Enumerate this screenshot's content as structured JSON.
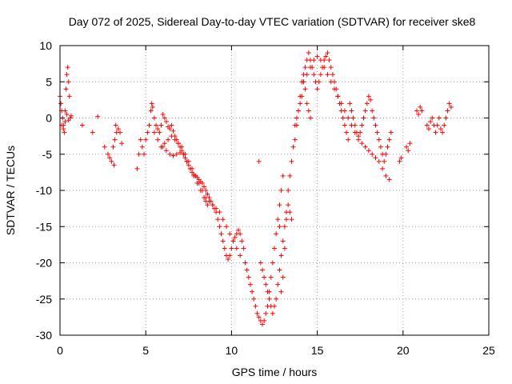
{
  "chart_data": {
    "type": "scatter",
    "title": "Day 072 of 2025, Sidereal Day-to-day VTEC variation (SDTVAR) for receiver ske8",
    "xlabel": "GPS time / hours",
    "ylabel": "SDTVAR / TECUs",
    "xlim": [
      0,
      25
    ],
    "ylim": [
      -30,
      10
    ],
    "xticks": [
      0,
      5,
      10,
      15,
      20,
      25
    ],
    "yticks": [
      -30,
      -25,
      -20,
      -15,
      -10,
      -5,
      0,
      5,
      10
    ],
    "xtick_labels": [
      "0",
      "5",
      "10",
      "15",
      "20",
      "25"
    ],
    "ytick_labels": [
      "-30",
      "-25",
      "-20",
      "-15",
      "-10",
      "-5",
      "0",
      "5",
      "10"
    ],
    "grid": true,
    "marker": "+",
    "marker_color": "#ff0000",
    "series": [
      {
        "name": "SDTVAR",
        "x": [
          0.0,
          0.05,
          0.1,
          0.15,
          0.2,
          0.25,
          0.3,
          0.35,
          0.4,
          0.45,
          0.5,
          0.55,
          0.1,
          0.2,
          0.3,
          0.4,
          0.5,
          0.6,
          0.65,
          1.3,
          1.9,
          2.2,
          2.6,
          2.8,
          3.0,
          3.1,
          3.2,
          3.3,
          3.4,
          3.5,
          3.6,
          2.9,
          3.15,
          3.25,
          4.5,
          4.6,
          4.7,
          4.8,
          4.9,
          5.0,
          5.1,
          5.2,
          5.3,
          5.35,
          5.4,
          5.5,
          5.6,
          5.7,
          5.8,
          5.9,
          6.0,
          6.1,
          6.2,
          6.3,
          6.4,
          6.5,
          6.6,
          6.7,
          6.8,
          6.9,
          7.0,
          7.1,
          7.2,
          7.3,
          7.4,
          7.5,
          7.6,
          7.7,
          7.8,
          7.9,
          8.0,
          8.1,
          8.2,
          8.3,
          8.4,
          8.5,
          8.6,
          8.7,
          8.8,
          8.9,
          9.0,
          9.1,
          9.2,
          9.3,
          9.4,
          9.5,
          9.6,
          9.7,
          9.8,
          9.9,
          10.0,
          10.1,
          10.2,
          10.3,
          10.4,
          10.5,
          10.6,
          10.7,
          6.0,
          6.2,
          6.4,
          6.6,
          6.8,
          7.0,
          7.2,
          7.4,
          7.6,
          7.8,
          8.0,
          8.2,
          8.4,
          8.5,
          8.6,
          5.5,
          5.7,
          5.9,
          6.1,
          6.3,
          6.5,
          6.7,
          6.9,
          7.1,
          7.3,
          7.5,
          7.7,
          7.9,
          8.1,
          8.3,
          8.5,
          8.7,
          8.9,
          9.1,
          9.3,
          9.5,
          9.7,
          9.9,
          10.1,
          10.3,
          10.5,
          10.8,
          10.9,
          11.0,
          11.1,
          11.2,
          11.3,
          11.4,
          11.5,
          11.6,
          11.7,
          11.8,
          11.9,
          12.0,
          12.1,
          12.2,
          12.3,
          12.4,
          12.5,
          12.6,
          12.7,
          12.8,
          12.9,
          13.0,
          11.6,
          11.7,
          11.8,
          11.9,
          12.0,
          12.1,
          12.2,
          12.3,
          12.4,
          12.5,
          12.6,
          12.7,
          12.8,
          12.9,
          13.0,
          13.1,
          13.2,
          13.3,
          13.4,
          13.5,
          12.8,
          12.9,
          13.0,
          13.1,
          13.2,
          13.3,
          13.4,
          13.5,
          13.6,
          13.7,
          13.8,
          13.9,
          14.0,
          14.1,
          14.2,
          14.3,
          14.4,
          14.5,
          14.6,
          13.7,
          13.8,
          13.9,
          14.0,
          14.1,
          14.2,
          14.3,
          14.4,
          14.5,
          14.6,
          14.7,
          14.8,
          14.9,
          15.0,
          15.1,
          15.2,
          15.3,
          15.4,
          15.5,
          15.6,
          15.7,
          15.8,
          15.9,
          16.0,
          16.1,
          16.2,
          16.3,
          16.4,
          16.5,
          16.6,
          16.7,
          16.8,
          14.2,
          14.4,
          14.6,
          14.8,
          15.0,
          15.2,
          15.4,
          15.6,
          15.8,
          16.0,
          16.2,
          16.4,
          16.6,
          16.8,
          17.0,
          17.2,
          17.4,
          17.6,
          17.8,
          18.0,
          18.2,
          18.4,
          18.6,
          18.8,
          19.0,
          19.2,
          16.9,
          17.0,
          17.1,
          17.2,
          17.3,
          17.4,
          17.5,
          17.6,
          17.7,
          17.8,
          17.9,
          18.0,
          18.1,
          18.2,
          18.3,
          18.4,
          18.5,
          18.6,
          18.7,
          18.8,
          18.9,
          19.0,
          19.1,
          19.2,
          19.3,
          19.8,
          19.9,
          20.2,
          20.3,
          20.4,
          20.8,
          20.9,
          21.0,
          21.1,
          21.4,
          21.5,
          21.6,
          21.7,
          21.8,
          21.9,
          22.0,
          22.1,
          22.2,
          22.3,
          22.4,
          22.5,
          22.6,
          22.7,
          22.8
        ],
        "y": [
          3,
          2,
          1,
          0,
          -1,
          -2,
          1,
          4,
          6,
          7,
          5,
          3,
          -1,
          -1.5,
          -0.5,
          0.5,
          -0.3,
          0,
          0.3,
          -1,
          -2,
          0.2,
          -4,
          -5,
          -6,
          -4,
          -3,
          -2,
          -1.5,
          -2,
          -3.5,
          -5.5,
          -6.5,
          -1,
          -7,
          -5,
          -3,
          -4,
          -5,
          -3,
          -2,
          -1,
          1,
          2,
          1.5,
          0,
          -1,
          -1.5,
          -2,
          -1,
          0.5,
          0,
          -0.5,
          -1.2,
          -1.5,
          -1,
          -1.8,
          -2.5,
          -3,
          -3.5,
          -4,
          -4.5,
          -5,
          -5.5,
          -6,
          -6.5,
          -7,
          -7.5,
          -7.8,
          -8,
          -8.2,
          -8.5,
          -8.8,
          -9,
          -9.5,
          -10,
          -10.5,
          -11,
          -11.5,
          -12,
          -12.5,
          -13,
          -14,
          -15,
          -16,
          -17,
          -18,
          -19,
          -19.5,
          -19,
          -18,
          -17,
          -16.5,
          -16,
          -15.5,
          -16,
          -17,
          -18,
          -4,
          -4.5,
          -5,
          -5.2,
          -5,
          -4.8,
          -5,
          -6,
          -7,
          -8,
          -9,
          -10,
          -11,
          -11.5,
          -12,
          -2,
          -3,
          -4,
          -3.5,
          -3,
          -2.5,
          -3,
          -3.5,
          -4,
          -5,
          -6,
          -7,
          -8,
          -9,
          -10,
          -11,
          -11.5,
          -12,
          -12.5,
          -13,
          -14,
          -15,
          -16,
          -17,
          -18,
          -19,
          -20,
          -21,
          -22,
          -23,
          -24,
          -25,
          -26,
          -27,
          -27.5,
          -28,
          -28.5,
          -28,
          -27,
          -26,
          -24,
          -22,
          -20,
          -18,
          -16,
          -14,
          -12,
          -10,
          -8,
          -6,
          -20,
          -21,
          -22,
          -23,
          -24,
          -25,
          -26,
          -27,
          -26,
          -25,
          -23,
          -21,
          -19,
          -17,
          -15,
          -13,
          -12,
          -13,
          -14,
          -15,
          -24,
          -22,
          -18,
          -14,
          -10,
          -8,
          -6,
          -4,
          -3,
          -1,
          1,
          3,
          5,
          6,
          4,
          2,
          1,
          0,
          -1,
          0,
          1,
          2,
          3,
          5,
          7,
          8,
          9,
          8,
          7,
          6,
          5,
          4,
          5,
          6,
          7,
          8,
          8.5,
          9,
          8,
          7,
          6,
          5,
          4,
          3,
          2,
          1,
          0,
          -1,
          -2,
          -3,
          5,
          6,
          7,
          8,
          8.5,
          8,
          7,
          6,
          5,
          4,
          3,
          2,
          1,
          0,
          -1,
          -2,
          -3,
          -3.5,
          -4,
          -4.5,
          -5,
          -5.5,
          -6,
          -7,
          -8,
          -8.5,
          2,
          1,
          0,
          -1,
          -2,
          -2.5,
          -2,
          -1,
          0,
          1,
          2,
          3,
          2.5,
          1,
          0,
          -1,
          -2,
          -3,
          -4,
          -5,
          -6,
          -5,
          -4,
          -3,
          -2,
          -6,
          -5.5,
          -4,
          -4.5,
          -3.5,
          1,
          0.5,
          1.5,
          1,
          -1,
          -1.5,
          -0.5,
          0,
          -1,
          -2,
          -1,
          0,
          -1.5,
          -2,
          -1,
          0,
          1,
          2,
          1.5
        ]
      }
    ]
  }
}
